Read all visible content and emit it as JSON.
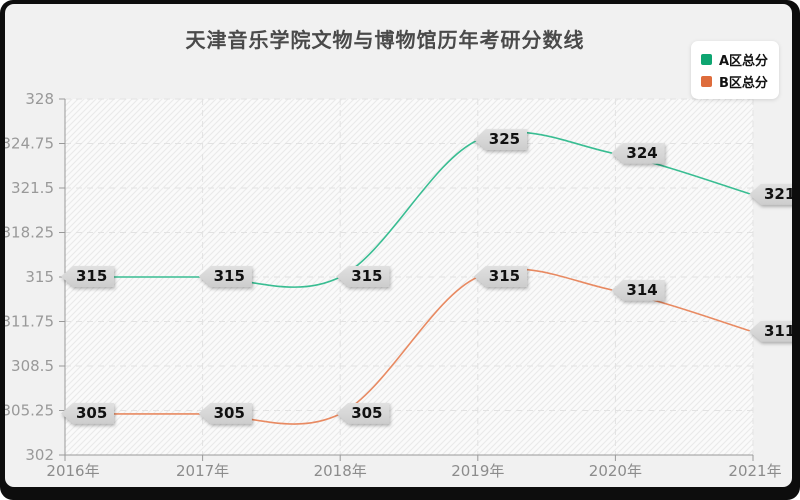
{
  "title": "天津音乐学院文物与博物馆历年考研分数线",
  "legend": {
    "items": [
      {
        "label": "A区总分",
        "color": "#0ea571"
      },
      {
        "label": "B区总分",
        "color": "#de6c3c"
      }
    ]
  },
  "chart_data": {
    "type": "line",
    "smooth": true,
    "categories": [
      "2016年",
      "2017年",
      "2018年",
      "2019年",
      "2020年",
      "2021年"
    ],
    "series": [
      {
        "name": "A区总分",
        "color": "#0ea571",
        "line_color": "#39bd92",
        "values": [
          315,
          315,
          315,
          325,
          324,
          321
        ]
      },
      {
        "name": "B区总分",
        "color": "#de6c3c",
        "line_color": "#e88a62",
        "values": [
          305,
          305,
          305,
          315,
          314,
          311
        ]
      }
    ],
    "ylim": [
      302,
      328
    ],
    "yticks": [
      302,
      305.25,
      308.5,
      311.75,
      315,
      318.25,
      321.5,
      324.75,
      328
    ],
    "xlabel": "",
    "ylabel": "",
    "grid": "dashed",
    "legend_position": "top-right",
    "point_labels": "shown in gray callout tags at every data point"
  },
  "colors": {
    "canvas_bg": "#f1f1f1",
    "plot_bg": "#fafafa",
    "hatch": "#eaeaea",
    "grid": "#e2e2e2",
    "axis": "#999999",
    "y_tick_label": "#999999",
    "x_tick_label": "#8c8c8c",
    "title_text": "#4a4a4a",
    "tag_bg": "#d8d8d8",
    "tag_text": "#111111",
    "legend_bg": "#ffffff",
    "frame": "#0d0d0d"
  }
}
